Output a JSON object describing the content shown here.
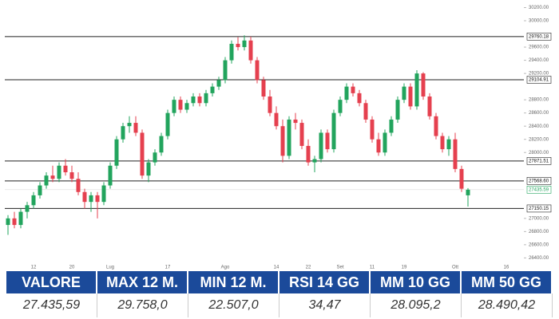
{
  "chart_data": {
    "type": "candlestick",
    "categories": [
      null,
      null,
      null,
      null,
      "12",
      null,
      null,
      null,
      null,
      null,
      "20",
      null,
      null,
      null,
      null,
      null,
      "Lug",
      null,
      null,
      null,
      null,
      null,
      null,
      null,
      null,
      "17",
      null,
      null,
      null,
      null,
      null,
      null,
      null,
      null,
      "Ago",
      null,
      null,
      null,
      null,
      null,
      null,
      null,
      "14",
      null,
      null,
      null,
      null,
      "22",
      null,
      null,
      null,
      null,
      "Set",
      null,
      null,
      null,
      null,
      "11",
      null,
      null,
      null,
      null,
      "19",
      null,
      null,
      null,
      null,
      null,
      null,
      null,
      "Ott",
      null,
      null,
      null,
      null,
      null,
      null,
      null,
      "16",
      null
    ],
    "open": [
      26900,
      27000,
      26900,
      27100,
      27200,
      27350,
      27500,
      27650,
      27600,
      27800,
      27700,
      27600,
      27400,
      27250,
      27350,
      27250,
      27500,
      27800,
      28200,
      28400,
      28450,
      28300,
      27650,
      27850,
      28000,
      28250,
      28600,
      28800,
      28650,
      28750,
      28850,
      28750,
      28900,
      29000,
      29100,
      29400,
      29650,
      29600,
      29700,
      29400,
      29100,
      28850,
      28600,
      28400,
      27950,
      28500,
      28450,
      28100,
      27850,
      27900,
      28300,
      28050,
      28600,
      28800,
      29000,
      28900,
      28750,
      28500,
      28200,
      28000,
      28300,
      28500,
      28800,
      29000,
      28700,
      29200,
      28850,
      28550,
      28250,
      28050,
      28200,
      27750,
      27350,
      null,
      null,
      null,
      null,
      null,
      null,
      null
    ],
    "high": [
      27050,
      27100,
      27150,
      27250,
      27400,
      27550,
      27700,
      27800,
      27850,
      27900,
      27800,
      27700,
      27450,
      27400,
      27400,
      27550,
      27850,
      28250,
      28450,
      28550,
      28550,
      28350,
      27900,
      28050,
      28300,
      28650,
      28850,
      28850,
      28800,
      28900,
      28900,
      28950,
      29050,
      29150,
      29450,
      29700,
      29750,
      29780,
      29760,
      29450,
      29150,
      28950,
      28700,
      28500,
      28550,
      28600,
      28500,
      28200,
      27950,
      28350,
      28350,
      28650,
      28850,
      29050,
      29050,
      28950,
      28800,
      28550,
      28300,
      28350,
      28550,
      28850,
      29050,
      29050,
      29250,
      29220,
      28900,
      28600,
      28300,
      28250,
      28300,
      27800,
      27460,
      null,
      null,
      null,
      null,
      null,
      null,
      null
    ],
    "low": [
      26750,
      26850,
      26850,
      27000,
      27150,
      27300,
      27450,
      27550,
      27550,
      27650,
      27550,
      27350,
      27150,
      27100,
      27000,
      27200,
      27450,
      27750,
      28150,
      28300,
      28250,
      27600,
      27550,
      27800,
      27950,
      28200,
      28550,
      28600,
      28600,
      28700,
      28700,
      28700,
      28850,
      28950,
      29050,
      29350,
      29550,
      29550,
      29350,
      29050,
      28800,
      28550,
      28350,
      27850,
      27900,
      28350,
      28050,
      27800,
      27700,
      27850,
      28000,
      28000,
      28550,
      28750,
      28850,
      28700,
      28450,
      28150,
      27950,
      27950,
      28250,
      28450,
      28750,
      28650,
      28650,
      28800,
      28500,
      28200,
      28000,
      27950,
      27700,
      27400,
      27180,
      null,
      null,
      null,
      null,
      null,
      null,
      null
    ],
    "close": [
      27000,
      26900,
      27100,
      27200,
      27350,
      27500,
      27650,
      27600,
      27800,
      27700,
      27600,
      27400,
      27250,
      27350,
      27250,
      27500,
      27800,
      28200,
      28400,
      28450,
      28300,
      27650,
      27850,
      28000,
      28250,
      28600,
      28800,
      28650,
      28750,
      28850,
      28750,
      28900,
      29000,
      29100,
      29400,
      29650,
      29600,
      29700,
      29400,
      29100,
      28850,
      28600,
      28400,
      27950,
      28500,
      28450,
      28100,
      27850,
      27900,
      28300,
      28050,
      28600,
      28800,
      29000,
      28900,
      28750,
      28500,
      28200,
      28000,
      28300,
      28500,
      28800,
      29000,
      28700,
      29200,
      28850,
      28550,
      28250,
      28050,
      28200,
      27750,
      27450,
      27435.59,
      null,
      null,
      null,
      null,
      null,
      null,
      null
    ],
    "up_color": "#22a45d",
    "down_color": "#e5404f",
    "ylim": [
      26320,
      30315
    ],
    "yticks": [
      {
        "value": 26400,
        "label": "26400.00"
      },
      {
        "value": 26600,
        "label": "26600.00"
      },
      {
        "value": 26800,
        "label": "26800.00"
      },
      {
        "value": 27000,
        "label": "27000.00"
      },
      {
        "value": 28000,
        "label": "28000.00"
      },
      {
        "value": 28200,
        "label": "28200.00"
      },
      {
        "value": 28400,
        "label": "28400.00"
      },
      {
        "value": 28600,
        "label": "28600.00"
      },
      {
        "value": 28800,
        "label": "28800.00"
      },
      {
        "value": 29200,
        "label": "29200.00"
      },
      {
        "value": 29400,
        "label": "29400.00"
      },
      {
        "value": 29600,
        "label": "29600.00"
      },
      {
        "value": 30000,
        "label": "30000.00"
      },
      {
        "value": 30200,
        "label": "30200.00"
      }
    ],
    "levels": [
      {
        "value": 29760.18,
        "label": "29760.18"
      },
      {
        "value": 29104.91,
        "label": "29104.91"
      },
      {
        "value": 27871.51,
        "label": "27871.51"
      },
      {
        "value": 27568.6,
        "label": "27568.60"
      },
      {
        "value": 27150.15,
        "label": "27150.15"
      }
    ],
    "last_price": {
      "value": 27435.59,
      "label": "27435.59"
    }
  },
  "table": {
    "headers": [
      "VALORE",
      "MAX 12 M.",
      "MIN 12 M.",
      "RSI 14 GG",
      "MM 10 GG",
      "MM 50 GG"
    ],
    "rows": [
      [
        "27.435,59",
        "29.758,0",
        "22.507,0",
        "34,47",
        "28.095,2",
        "28.490,42"
      ]
    ]
  }
}
